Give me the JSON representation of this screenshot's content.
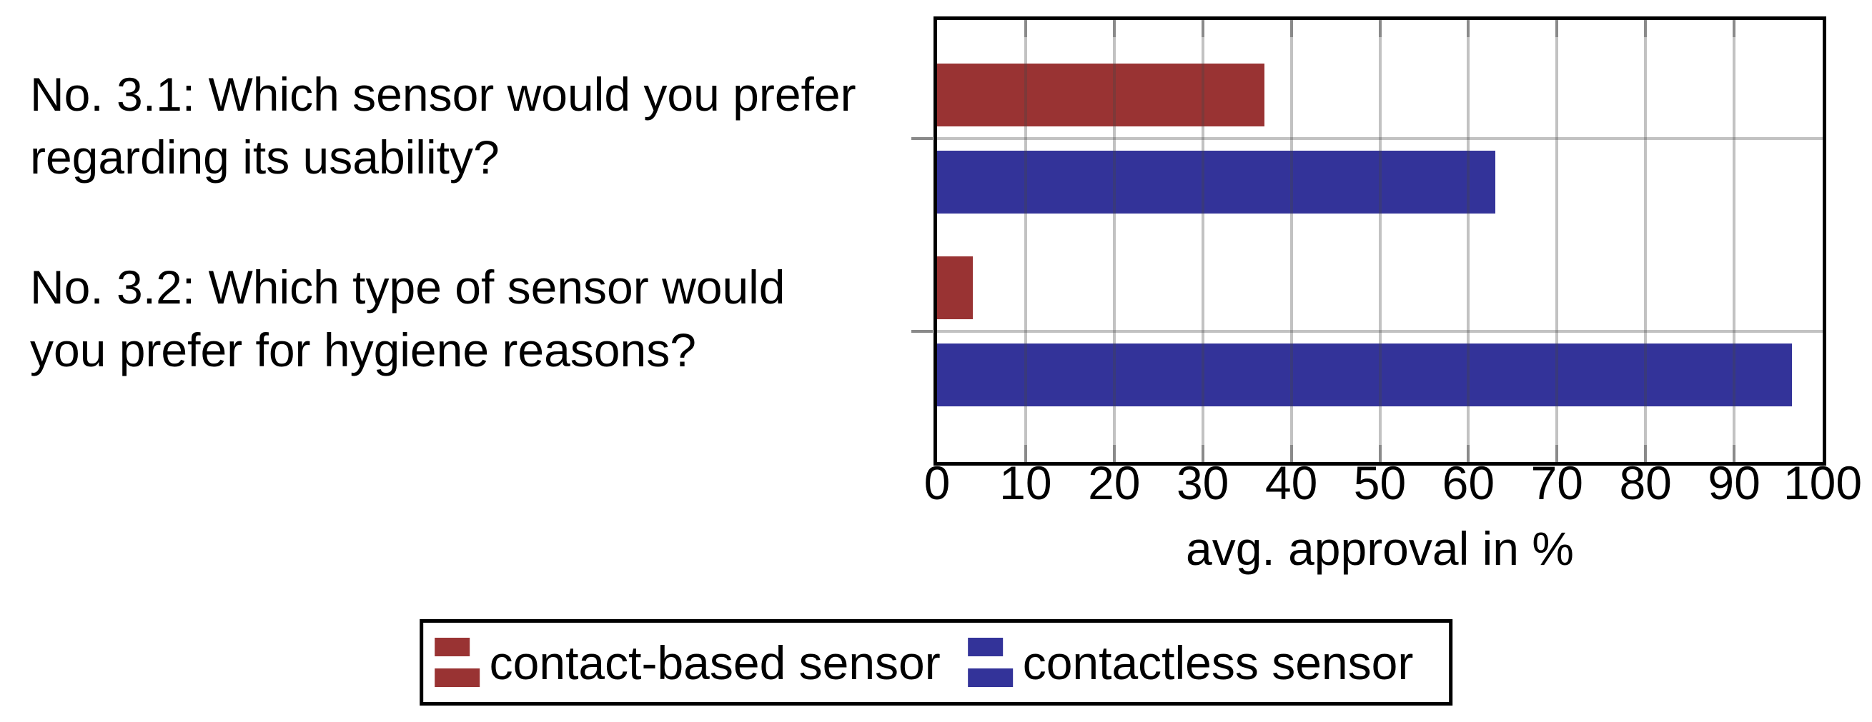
{
  "chart_data": {
    "type": "bar",
    "orientation": "horizontal",
    "categories": [
      "No. 3.1: Which sensor would you prefer\nregarding its usability?",
      "No. 3.2: Which type of sensor would\nyou prefer for hygiene reasons?"
    ],
    "series": [
      {
        "name": "contact-based sensor",
        "color": "#993333",
        "values": [
          37,
          4
        ]
      },
      {
        "name": "contactless sensor",
        "color": "#333399",
        "values": [
          63,
          96.5
        ]
      }
    ],
    "xlabel": "avg. approval in %",
    "xlim": [
      0,
      100
    ],
    "xticks": [
      0,
      10,
      20,
      30,
      40,
      50,
      60,
      70,
      80,
      90,
      100
    ],
    "grid": true,
    "grid_color": "#b8b8b8",
    "axis_color": "#000000",
    "background": "#ffffff",
    "legend_position": "below chart, boxed"
  }
}
